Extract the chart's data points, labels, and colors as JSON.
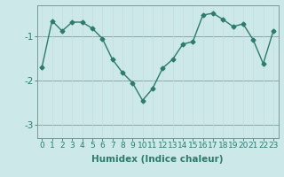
{
  "x": [
    0,
    1,
    2,
    3,
    4,
    5,
    6,
    7,
    8,
    9,
    10,
    11,
    12,
    13,
    14,
    15,
    16,
    17,
    18,
    19,
    20,
    21,
    22,
    23
  ],
  "y": [
    -1.7,
    -0.65,
    -0.88,
    -0.68,
    -0.68,
    -0.82,
    -1.05,
    -1.52,
    -1.82,
    -2.05,
    -2.45,
    -2.18,
    -1.72,
    -1.52,
    -1.18,
    -1.12,
    -0.52,
    -0.48,
    -0.62,
    -0.78,
    -0.72,
    -1.08,
    -1.62,
    -0.88
  ],
  "line_color": "#2d7b6e",
  "marker": "D",
  "markersize": 2.5,
  "linewidth": 1.0,
  "xlabel": "Humidex (Indice chaleur)",
  "bg_color": "#cce8e8",
  "grid_color_h": "#b8d0d0",
  "grid_color_v": "#c8dcdc",
  "ylim": [
    -3.3,
    -0.3
  ],
  "xlim": [
    -0.5,
    23.5
  ],
  "yticks": [
    -3,
    -2,
    -1
  ],
  "xticks": [
    0,
    1,
    2,
    3,
    4,
    5,
    6,
    7,
    8,
    9,
    10,
    11,
    12,
    13,
    14,
    15,
    16,
    17,
    18,
    19,
    20,
    21,
    22,
    23
  ],
  "xtick_labels": [
    "0",
    "1",
    "2",
    "3",
    "4",
    "5",
    "6",
    "7",
    "8",
    "9",
    "10",
    "11",
    "12",
    "13",
    "14",
    "15",
    "16",
    "17",
    "18",
    "19",
    "20",
    "21",
    "22",
    "23"
  ],
  "xlabel_fontsize": 7.5,
  "tick_fontsize": 6.5,
  "ytick_fontsize": 7.5
}
